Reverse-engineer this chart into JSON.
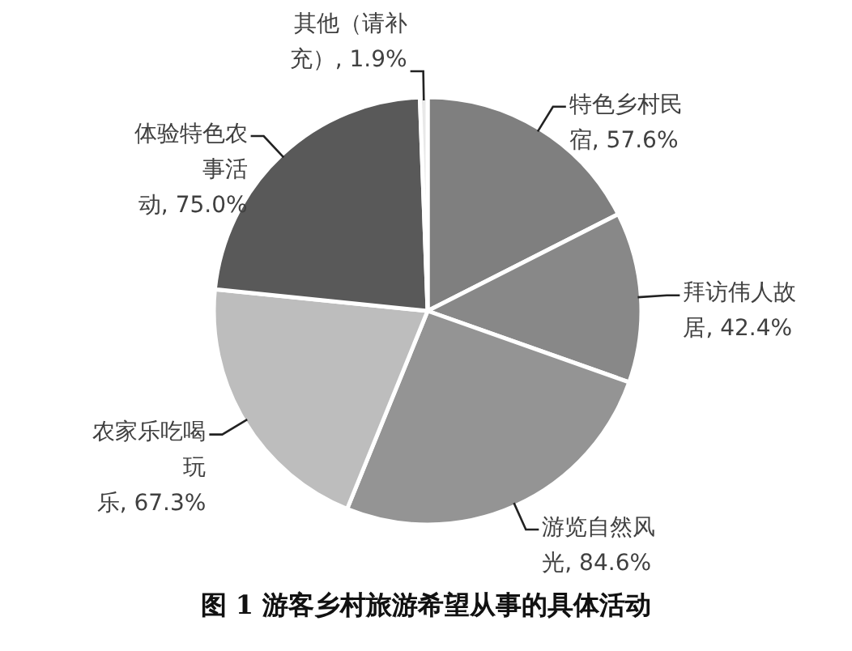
{
  "chart_data": {
    "type": "pie",
    "title": "图 1 游客乡村旅游希望从事的具体活动",
    "categories": [
      "特色乡村民宿",
      "拜访伟人故居",
      "游览自然风光",
      "农家乐吃喝玩乐",
      "体验特色农事活动",
      "其他（请补充）"
    ],
    "values": [
      57.6,
      42.4,
      84.6,
      67.3,
      75.0,
      1.9
    ],
    "value_labels": [
      "57.6%",
      "42.4%",
      "84.6%",
      "67.3%",
      "75.0%",
      "1.9%"
    ],
    "colors": [
      "#7f7f7f",
      "#888888",
      "#949494",
      "#bdbdbd",
      "#595959",
      "#e8e8e8"
    ],
    "legend": false
  }
}
